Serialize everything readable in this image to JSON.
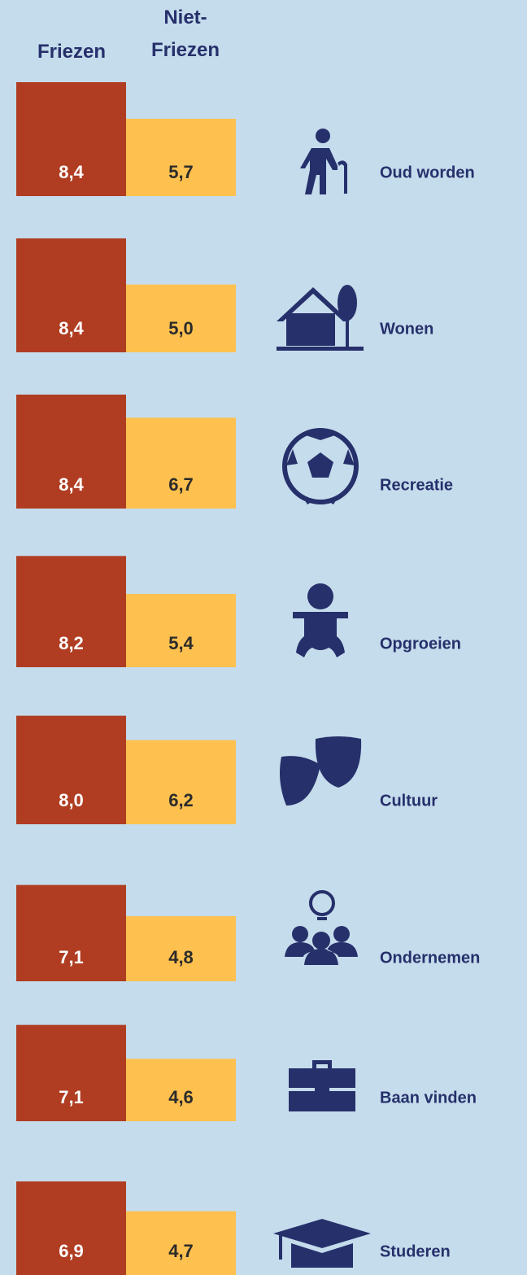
{
  "chart_data": {
    "type": "bar",
    "categories": [
      "Oud worden",
      "Wonen",
      "Recreatie",
      "Opgroeien",
      "Cultuur",
      "Ondernemen",
      "Baan vinden",
      "Studeren"
    ],
    "series": [
      {
        "name": "Friezen",
        "color": "#b03d22",
        "values": [
          8.4,
          8.4,
          8.4,
          8.2,
          8.0,
          7.1,
          7.1,
          6.9
        ],
        "value_labels": [
          "8,4",
          "8,4",
          "8,4",
          "8,2",
          "8,0",
          "7,1",
          "7,1",
          "6,9"
        ]
      },
      {
        "name": "Niet-Friezen",
        "color": "#fec04f",
        "values": [
          5.7,
          5.0,
          6.7,
          5.4,
          6.2,
          4.8,
          4.6,
          4.7
        ],
        "value_labels": [
          "5,7",
          "5,0",
          "6,7",
          "5,4",
          "6,2",
          "4,8",
          "4,6",
          "4,7"
        ]
      }
    ]
  }
}
